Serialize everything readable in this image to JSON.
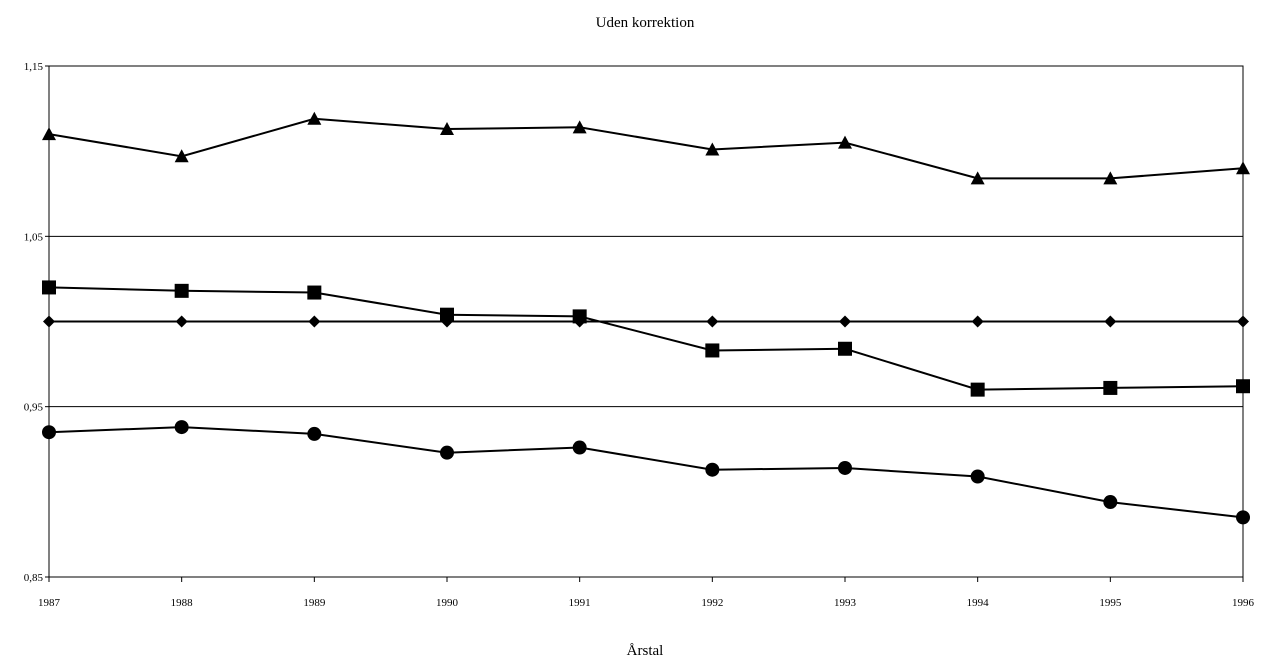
{
  "chart_data": {
    "type": "line",
    "title": "Uden korrektion",
    "xlabel": "Årstal",
    "ylabel": "",
    "x": [
      "1987",
      "1988",
      "1989",
      "1990",
      "1991",
      "1992",
      "1993",
      "1994",
      "1995",
      "1996"
    ],
    "ylim": [
      0.85,
      1.15
    ],
    "yticks": [
      0.85,
      0.95,
      1.05,
      1.15
    ],
    "ytick_labels": [
      "0,85",
      "0,95",
      "1,05",
      "1,15"
    ],
    "grid": "horizontal",
    "legend": "none",
    "series": [
      {
        "marker": "triangle",
        "values": [
          1.11,
          1.097,
          1.119,
          1.113,
          1.114,
          1.101,
          1.105,
          1.084,
          1.084,
          1.09
        ]
      },
      {
        "marker": "square",
        "values": [
          1.02,
          1.018,
          1.017,
          1.004,
          1.003,
          0.983,
          0.984,
          0.96,
          0.961,
          0.962
        ]
      },
      {
        "marker": "diamond",
        "values": [
          1.0,
          1.0,
          1.0,
          1.0,
          1.0,
          1.0,
          1.0,
          1.0,
          1.0,
          1.0
        ]
      },
      {
        "marker": "circle",
        "values": [
          0.935,
          0.938,
          0.934,
          0.923,
          0.926,
          0.913,
          0.914,
          0.909,
          0.894,
          0.885
        ]
      }
    ]
  }
}
